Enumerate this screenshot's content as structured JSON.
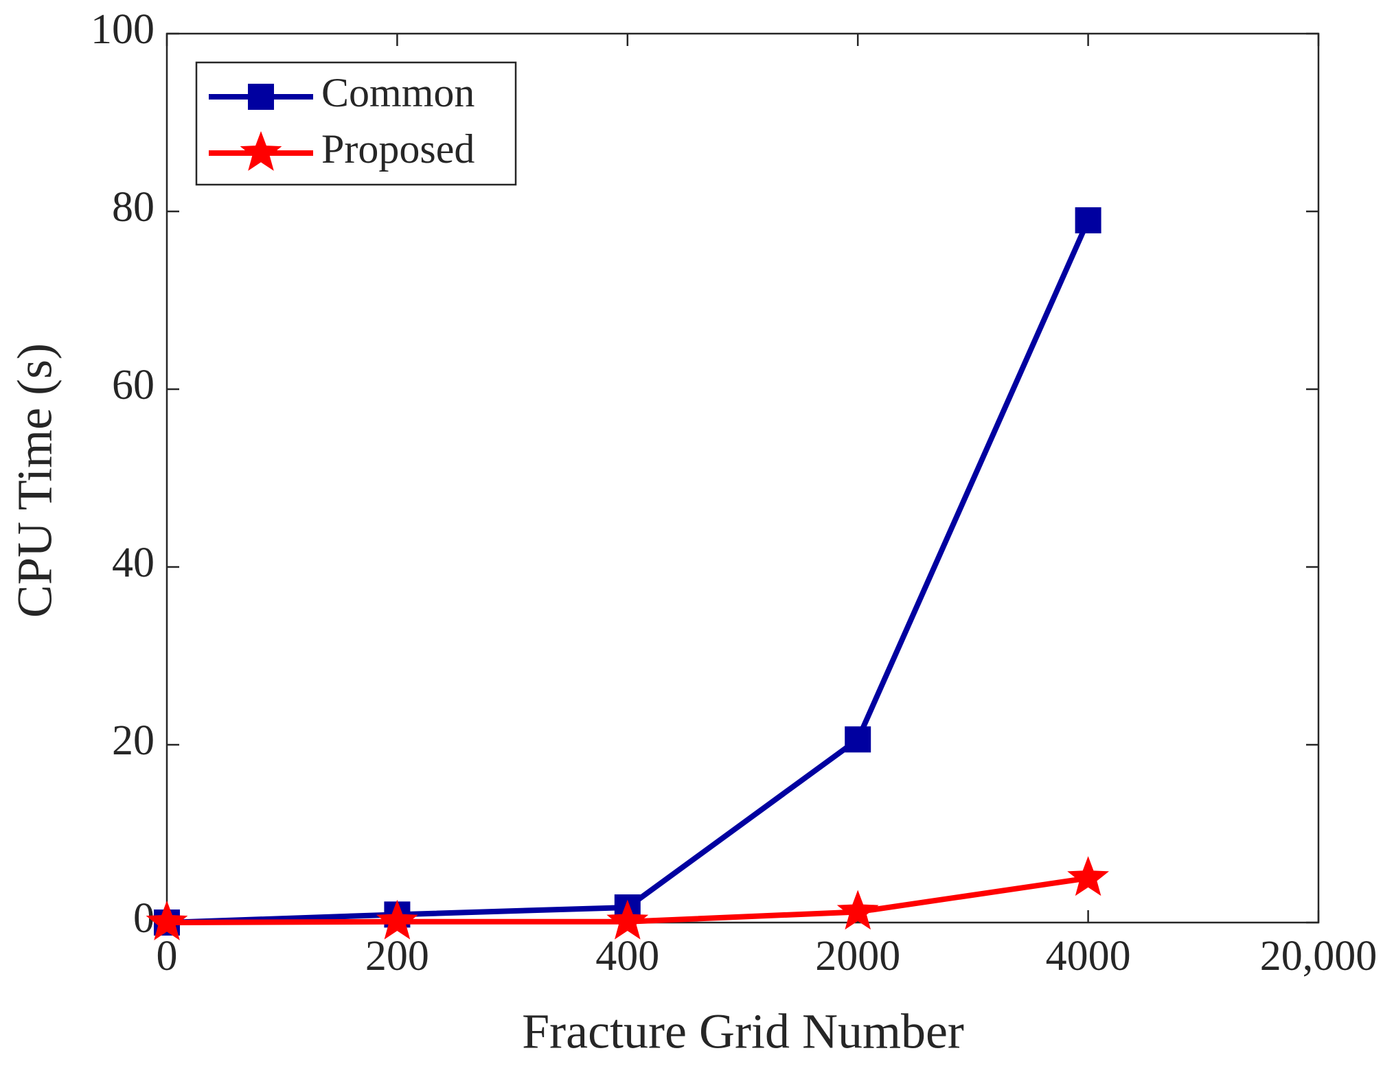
{
  "chart_data": {
    "type": "line",
    "xlabel": "Fracture Grid Number",
    "ylabel": "CPU Time (s)",
    "categories": [
      "0",
      "200",
      "400",
      "2000",
      "4000",
      "20,000"
    ],
    "series": [
      {
        "name": "Common",
        "color": "#0000a0",
        "marker": "square",
        "values": [
          0,
          0.9,
          1.7,
          20.6,
          79,
          null
        ]
      },
      {
        "name": "Proposed",
        "color": "#ff0000",
        "marker": "star",
        "values": [
          0,
          0.1,
          0.1,
          1.2,
          5,
          null
        ]
      }
    ],
    "ylim": [
      0,
      100
    ],
    "yticks": [
      0,
      20,
      40,
      60,
      80,
      100
    ],
    "grid": false,
    "legend": "upper left"
  }
}
